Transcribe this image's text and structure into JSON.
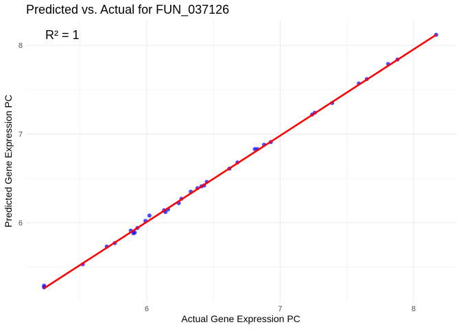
{
  "chart_data": {
    "type": "scatter",
    "title": "Predicted vs. Actual for FUN_037126",
    "xlabel": "Actual Gene Expression PC",
    "ylabel": "Predicted Gene Expression PC",
    "xlim": [
      5.095,
      8.32
    ],
    "ylim": [
      5.11,
      8.28
    ],
    "xticks": [
      6,
      7,
      8
    ],
    "yticks": [
      6,
      7,
      8
    ],
    "grid": true,
    "annotation": "R² = 1",
    "point_color": "#0000FF",
    "line_color": "#FF0000",
    "fit_line": {
      "x": [
        5.23,
        8.17
      ],
      "y": [
        5.26,
        8.12
      ]
    },
    "points": [
      [
        5.23,
        5.29
      ],
      [
        5.23,
        5.27
      ],
      [
        5.52,
        5.53
      ],
      [
        5.7,
        5.73
      ],
      [
        5.76,
        5.77
      ],
      [
        5.88,
        5.91
      ],
      [
        5.9,
        5.88
      ],
      [
        5.91,
        5.89
      ],
      [
        5.93,
        5.94
      ],
      [
        5.99,
        6.02
      ],
      [
        6.02,
        6.08
      ],
      [
        6.13,
        6.14
      ],
      [
        6.14,
        6.12
      ],
      [
        6.16,
        6.15
      ],
      [
        6.24,
        6.22
      ],
      [
        6.26,
        6.27
      ],
      [
        6.33,
        6.35
      ],
      [
        6.38,
        6.39
      ],
      [
        6.41,
        6.41
      ],
      [
        6.43,
        6.42
      ],
      [
        6.45,
        6.46
      ],
      [
        6.62,
        6.61
      ],
      [
        6.68,
        6.68
      ],
      [
        6.81,
        6.83
      ],
      [
        6.83,
        6.83
      ],
      [
        6.88,
        6.88
      ],
      [
        6.93,
        6.91
      ],
      [
        7.24,
        7.22
      ],
      [
        7.26,
        7.24
      ],
      [
        7.39,
        7.35
      ],
      [
        7.59,
        7.57
      ],
      [
        7.65,
        7.62
      ],
      [
        7.81,
        7.79
      ],
      [
        7.88,
        7.84
      ],
      [
        8.17,
        8.12
      ]
    ]
  }
}
